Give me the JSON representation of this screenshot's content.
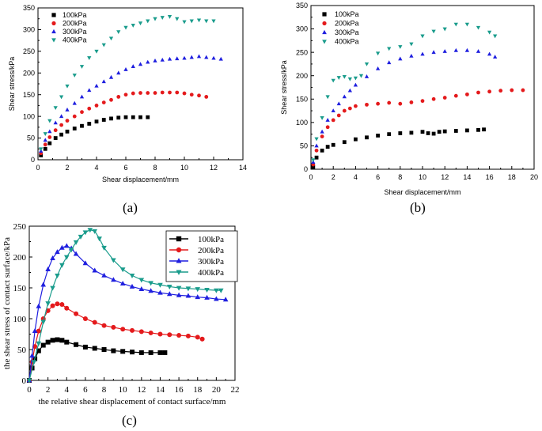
{
  "chart_data": [
    {
      "type": "scatter",
      "id": "a",
      "caption": "(a)",
      "title": "",
      "xlabel": "Shear displacement/mm",
      "ylabel": "Shear stress/kPa",
      "xlim": [
        0,
        14
      ],
      "ylim": [
        0,
        350
      ],
      "xticks": [
        0,
        2,
        4,
        6,
        8,
        10,
        12,
        14
      ],
      "yticks": [
        0,
        50,
        100,
        150,
        200,
        250,
        300,
        350
      ],
      "xtick_labels": [
        "0",
        "2",
        "4",
        "6",
        "8",
        "10",
        "12",
        "14"
      ],
      "ytick_labels": [
        "0",
        "50",
        "100",
        "150",
        "200",
        "250",
        "300",
        "350"
      ],
      "legend_position": "top-left",
      "series": [
        {
          "name": "100kPa",
          "color": "#000000",
          "marker": "square",
          "x": [
            0.2,
            0.5,
            0.8,
            1.2,
            1.6,
            2.0,
            2.5,
            3.0,
            3.5,
            4.0,
            4.5,
            5.0,
            5.5,
            6.0,
            6.5,
            7.0,
            7.5
          ],
          "y": [
            10,
            25,
            38,
            50,
            58,
            65,
            72,
            78,
            83,
            88,
            92,
            95,
            97,
            98,
            98,
            98,
            98
          ]
        },
        {
          "name": "200kPa",
          "color": "#e41a1c",
          "marker": "circle",
          "x": [
            0.2,
            0.5,
            0.8,
            1.2,
            1.6,
            2.0,
            2.5,
            3.0,
            3.5,
            4.0,
            4.5,
            5.0,
            5.5,
            6.0,
            6.5,
            7.0,
            7.5,
            8.0,
            8.5,
            9.0,
            9.5,
            10.0,
            10.5,
            11.0,
            11.5
          ],
          "y": [
            15,
            35,
            52,
            68,
            80,
            90,
            100,
            110,
            118,
            125,
            132,
            138,
            145,
            150,
            153,
            154,
            154,
            154,
            155,
            155,
            155,
            153,
            150,
            148,
            145
          ]
        },
        {
          "name": "300kPa",
          "color": "#1f1fdf",
          "marker": "triangle-up",
          "x": [
            0.2,
            0.5,
            0.8,
            1.2,
            1.6,
            2.0,
            2.5,
            3.0,
            3.5,
            4.0,
            4.5,
            5.0,
            5.5,
            6.0,
            6.5,
            7.0,
            7.5,
            8.0,
            8.5,
            9.0,
            9.5,
            10.0,
            10.5,
            11.0,
            11.5,
            12.0,
            12.5
          ],
          "y": [
            20,
            45,
            65,
            85,
            100,
            115,
            130,
            145,
            160,
            170,
            180,
            190,
            200,
            208,
            215,
            220,
            225,
            228,
            230,
            232,
            233,
            234,
            236,
            238,
            236,
            234,
            232
          ]
        },
        {
          "name": "400kPa",
          "color": "#1a9c8c",
          "marker": "triangle-down",
          "x": [
            0.2,
            0.5,
            0.8,
            1.2,
            1.6,
            2.0,
            2.5,
            3.0,
            3.5,
            4.0,
            4.5,
            5.0,
            5.5,
            6.0,
            6.5,
            7.0,
            7.5,
            8.0,
            8.5,
            9.0,
            9.5,
            10.0,
            10.5,
            11.0,
            11.5,
            12.0
          ],
          "y": [
            25,
            60,
            90,
            120,
            145,
            170,
            195,
            215,
            235,
            250,
            265,
            280,
            295,
            305,
            310,
            315,
            320,
            325,
            328,
            330,
            325,
            318,
            320,
            322,
            320,
            320
          ]
        }
      ]
    },
    {
      "type": "scatter",
      "id": "b",
      "caption": "(b)",
      "title": "",
      "xlabel": "Shear displacement/mm",
      "ylabel": "Shear stress/kPa",
      "xlim": [
        0,
        20
      ],
      "ylim": [
        0,
        350
      ],
      "xticks": [
        0,
        2,
        4,
        6,
        8,
        10,
        12,
        14,
        16,
        18,
        20
      ],
      "yticks": [
        0,
        50,
        100,
        150,
        200,
        250,
        300,
        350
      ],
      "xtick_labels": [
        "0",
        "2",
        "4",
        "6",
        "8",
        "10",
        "12",
        "14",
        "16",
        "18",
        "20"
      ],
      "ytick_labels": [
        "0",
        "50",
        "100",
        "150",
        "200",
        "250",
        "300",
        "350"
      ],
      "legend_position": "top-left",
      "series": [
        {
          "name": "100kPa",
          "color": "#000000",
          "marker": "square",
          "x": [
            0.2,
            0.5,
            1.0,
            1.5,
            2.0,
            3.0,
            4.0,
            5.0,
            6.0,
            7.0,
            8.0,
            9.0,
            10.0,
            10.5,
            11.0,
            11.5,
            12.0,
            13.0,
            14.0,
            15.0,
            15.5
          ],
          "y": [
            5,
            25,
            40,
            48,
            52,
            58,
            64,
            68,
            72,
            75,
            77,
            78,
            80,
            77,
            76,
            80,
            81,
            82,
            83,
            84,
            85
          ]
        },
        {
          "name": "200kPa",
          "color": "#e41a1c",
          "marker": "circle",
          "x": [
            0.2,
            0.5,
            1.0,
            1.5,
            2.0,
            2.5,
            3.0,
            3.5,
            4.0,
            5.0,
            6.0,
            7.0,
            8.0,
            9.0,
            10.0,
            11.0,
            12.0,
            13.0,
            14.0,
            15.0,
            16.0,
            17.0,
            18.0,
            19.0
          ],
          "y": [
            10,
            40,
            70,
            90,
            105,
            115,
            125,
            130,
            135,
            138,
            140,
            142,
            140,
            143,
            146,
            150,
            153,
            157,
            160,
            164,
            166,
            168,
            169,
            169
          ]
        },
        {
          "name": "300kPa",
          "color": "#1f1fdf",
          "marker": "triangle-up",
          "x": [
            0.2,
            0.5,
            1.0,
            1.5,
            2.0,
            2.5,
            3.0,
            3.5,
            4.0,
            5.0,
            6.0,
            7.0,
            8.0,
            9.0,
            10.0,
            11.0,
            12.0,
            13.0,
            14.0,
            15.0,
            16.0,
            16.5
          ],
          "y": [
            15,
            50,
            80,
            105,
            125,
            140,
            155,
            168,
            180,
            198,
            215,
            228,
            236,
            242,
            246,
            250,
            252,
            254,
            254,
            252,
            246,
            240
          ]
        },
        {
          "name": "400kPa",
          "color": "#1a9c8c",
          "marker": "triangle-down",
          "x": [
            0.2,
            0.5,
            1.0,
            1.5,
            2.0,
            2.5,
            3.0,
            3.5,
            4.0,
            4.5,
            5.0,
            6.0,
            7.0,
            8.0,
            9.0,
            10.0,
            11.0,
            12.0,
            13.0,
            14.0,
            15.0,
            16.0,
            16.5
          ],
          "y": [
            20,
            65,
            110,
            155,
            190,
            196,
            198,
            193,
            195,
            200,
            225,
            248,
            258,
            262,
            268,
            285,
            295,
            300,
            310,
            310,
            303,
            293,
            285
          ]
        }
      ]
    },
    {
      "type": "line",
      "id": "c",
      "caption": "(c)",
      "title": "",
      "xlabel": "the relative shear displacement of contact surface/mm",
      "ylabel": "the shear stress of contact surface/kPa",
      "xlim": [
        0,
        22
      ],
      "ylim": [
        0,
        250
      ],
      "xticks": [
        0,
        2,
        4,
        6,
        8,
        10,
        12,
        14,
        16,
        18,
        20,
        22
      ],
      "yticks": [
        0,
        50,
        100,
        150,
        200,
        250
      ],
      "xtick_labels": [
        "0",
        "2",
        "4",
        "6",
        "8",
        "10",
        "12",
        "14",
        "16",
        "18",
        "20",
        "22"
      ],
      "ytick_labels": [
        "0",
        "50",
        "100",
        "150",
        "200",
        "250"
      ],
      "legend_position": "top-right",
      "series": [
        {
          "name": "100kPa",
          "color": "#000000",
          "marker": "square",
          "x": [
            0,
            0.3,
            0.6,
            1.0,
            1.5,
            2.0,
            2.5,
            3.0,
            3.5,
            4.0,
            5.0,
            6.0,
            7.0,
            8.0,
            9.0,
            10.0,
            11.0,
            12.0,
            13.0,
            14.0,
            14.5
          ],
          "y": [
            0,
            20,
            35,
            48,
            57,
            62,
            65,
            66,
            65,
            62,
            58,
            54,
            52,
            50,
            48,
            47,
            46,
            45,
            45,
            45,
            45
          ]
        },
        {
          "name": "200kPa",
          "color": "#e41a1c",
          "marker": "circle",
          "x": [
            0,
            0.3,
            0.6,
            1.0,
            1.5,
            2.0,
            2.5,
            3.0,
            3.5,
            4.0,
            5.0,
            6.0,
            7.0,
            8.0,
            9.0,
            10.0,
            11.0,
            12.0,
            13.0,
            14.0,
            15.0,
            16.0,
            17.0,
            18.0,
            18.5
          ],
          "y": [
            0,
            30,
            55,
            80,
            100,
            113,
            121,
            124,
            123,
            117,
            108,
            100,
            94,
            89,
            86,
            83,
            81,
            79,
            77,
            75,
            74,
            73,
            72,
            70,
            67
          ]
        },
        {
          "name": "300kPa",
          "color": "#1f1fdf",
          "marker": "triangle-up",
          "x": [
            0,
            0.3,
            0.6,
            1.0,
            1.5,
            2.0,
            2.5,
            3.0,
            3.5,
            4.0,
            4.5,
            5.0,
            6.0,
            7.0,
            8.0,
            9.0,
            10.0,
            11.0,
            12.0,
            13.0,
            14.0,
            15.0,
            16.0,
            17.0,
            18.0,
            19.0,
            20.0,
            21.0
          ],
          "y": [
            0,
            40,
            80,
            120,
            155,
            180,
            198,
            208,
            215,
            218,
            214,
            205,
            190,
            178,
            170,
            163,
            157,
            152,
            148,
            145,
            142,
            140,
            138,
            137,
            135,
            134,
            132,
            131
          ]
        },
        {
          "name": "400kPa",
          "color": "#1a9c8c",
          "marker": "triangle-down",
          "x": [
            0,
            0.5,
            1.0,
            1.5,
            2.0,
            2.5,
            3.0,
            3.5,
            4.0,
            4.5,
            5.0,
            5.5,
            6.0,
            6.5,
            7.0,
            7.5,
            8.0,
            9.0,
            10.0,
            11.0,
            12.0,
            13.0,
            14.0,
            15.0,
            16.0,
            17.0,
            18.0,
            19.0,
            20.0,
            20.5
          ],
          "y": [
            0,
            30,
            60,
            95,
            125,
            150,
            170,
            187,
            200,
            212,
            224,
            233,
            240,
            244,
            242,
            230,
            215,
            195,
            180,
            170,
            163,
            158,
            155,
            152,
            150,
            149,
            148,
            147,
            146,
            146
          ]
        }
      ]
    }
  ]
}
